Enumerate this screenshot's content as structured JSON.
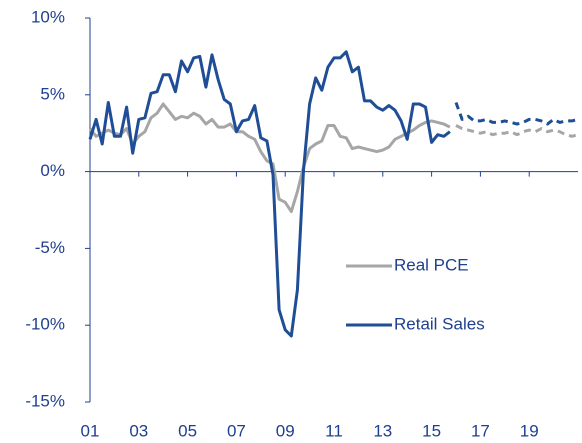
{
  "chart_data": {
    "type": "line",
    "x": [
      2001,
      2001.25,
      2001.5,
      2001.75,
      2002,
      2002.25,
      2002.5,
      2002.75,
      2003,
      2003.25,
      2003.5,
      2003.75,
      2004,
      2004.25,
      2004.5,
      2004.75,
      2005,
      2005.25,
      2005.5,
      2005.75,
      2006,
      2006.25,
      2006.5,
      2006.75,
      2007,
      2007.25,
      2007.5,
      2007.75,
      2008,
      2008.25,
      2008.5,
      2008.75,
      2009,
      2009.25,
      2009.5,
      2009.75,
      2010,
      2010.25,
      2010.5,
      2010.75,
      2011,
      2011.25,
      2011.5,
      2011.75,
      2012,
      2012.25,
      2012.5,
      2012.75,
      2013,
      2013.25,
      2013.5,
      2013.75,
      2014,
      2014.25,
      2014.5,
      2014.75,
      2015,
      2015.25,
      2015.5,
      2015.75,
      2016,
      2016.25,
      2016.5,
      2016.75,
      2017,
      2017.25,
      2017.5,
      2017.75,
      2018,
      2018.25,
      2018.5,
      2018.75,
      2019,
      2019.25,
      2019.5,
      2019.75,
      2020,
      2020.25,
      2020.5,
      2020.75,
      2021
    ],
    "series": [
      {
        "name": "Real PCE",
        "color": "#a6a6a6",
        "values": [
          2.8,
          2.3,
          2.5,
          2.7,
          2.5,
          2.4,
          2.8,
          1.8,
          2.3,
          2.6,
          3.5,
          3.8,
          4.4,
          3.9,
          3.4,
          3.6,
          3.5,
          3.8,
          3.6,
          3.1,
          3.4,
          2.9,
          2.9,
          3.1,
          2.6,
          2.6,
          2.3,
          2.1,
          1.3,
          0.7,
          0.5,
          -1.8,
          -2.0,
          -2.6,
          -1.3,
          0.3,
          1.5,
          1.8,
          2.0,
          3.0,
          3.0,
          2.3,
          2.2,
          1.5,
          1.6,
          1.5,
          1.4,
          1.3,
          1.4,
          1.6,
          2.1,
          2.3,
          2.5,
          2.7,
          3.0,
          3.2,
          3.3,
          3.2,
          3.1,
          2.9,
          3.0,
          2.8,
          2.7,
          2.6,
          2.5,
          2.6,
          2.4,
          2.5,
          2.5,
          2.6,
          2.4,
          2.6,
          2.7,
          2.6,
          2.8,
          2.6,
          2.7,
          2.6,
          2.4,
          2.3,
          2.4
        ]
      },
      {
        "name": "Retail Sales",
        "color": "#1f4e96",
        "values": [
          2.1,
          3.4,
          1.8,
          4.5,
          2.3,
          2.3,
          4.2,
          1.2,
          3.4,
          3.5,
          5.1,
          5.2,
          6.3,
          6.3,
          5.2,
          7.2,
          6.5,
          7.4,
          7.5,
          5.5,
          7.6,
          6.0,
          4.7,
          4.4,
          2.6,
          3.3,
          3.4,
          4.3,
          2.2,
          2.0,
          -0.2,
          -9.0,
          -10.3,
          -10.7,
          -7.7,
          0.1,
          4.4,
          6.1,
          5.3,
          6.8,
          7.4,
          7.4,
          7.8,
          6.5,
          6.8,
          4.6,
          4.6,
          4.2,
          4.0,
          4.3,
          4.0,
          3.3,
          2.1,
          4.4,
          4.4,
          4.2,
          1.9,
          2.4,
          2.3,
          2.6,
          4.5,
          3.4,
          3.6,
          3.3,
          3.3,
          3.4,
          3.2,
          3.2,
          3.3,
          3.2,
          3.1,
          3.2,
          3.4,
          3.4,
          3.3,
          3.1,
          3.4,
          3.2,
          3.3,
          3.3,
          3.4
        ]
      }
    ],
    "forecast_start": 2016,
    "xlim": [
      2001,
      2021
    ],
    "xticks": [
      {
        "value": 2001,
        "label": "01"
      },
      {
        "value": 2003,
        "label": "03"
      },
      {
        "value": 2005,
        "label": "05"
      },
      {
        "value": 2007,
        "label": "07"
      },
      {
        "value": 2009,
        "label": "09"
      },
      {
        "value": 2011,
        "label": "11"
      },
      {
        "value": 2013,
        "label": "13"
      },
      {
        "value": 2015,
        "label": "15"
      },
      {
        "value": 2017,
        "label": "17"
      },
      {
        "value": 2019,
        "label": "19"
      }
    ],
    "ylim": [
      -15,
      10
    ],
    "yticks": [
      {
        "value": -15,
        "label": "-15%"
      },
      {
        "value": -10,
        "label": "-10%"
      },
      {
        "value": -5,
        "label": "-5%"
      },
      {
        "value": 0,
        "label": "0%"
      },
      {
        "value": 5,
        "label": "5%"
      },
      {
        "value": 10,
        "label": "10%"
      }
    ],
    "grid": false
  }
}
